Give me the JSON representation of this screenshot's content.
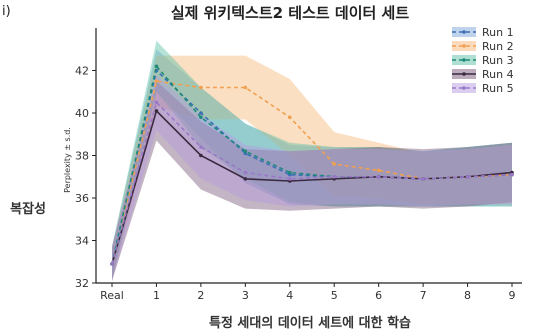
{
  "panel_label": "i)",
  "chart_data": {
    "type": "line",
    "title": "실제 위키텍스트2 테스트 데이터 세트",
    "xlabel": "특정 세대의 데이터 세트에 대한 학습",
    "ylabel": "복잡성",
    "ylabel_small": "Perplexity ± s.d.",
    "categories": [
      "Real",
      "1",
      "2",
      "3",
      "4",
      "5",
      "6",
      "7",
      "8",
      "9"
    ],
    "ylim": [
      32,
      44
    ],
    "yticks": [
      32,
      34,
      36,
      38,
      40,
      42
    ],
    "grid": false,
    "legend_position": "top-right",
    "series": [
      {
        "name": "Run 1",
        "color": "#3a6fb5",
        "band_color": "#7fa6d9",
        "linestyle": "dashed",
        "values": [
          32.9,
          42.0,
          40.0,
          38.1,
          37.1,
          37.0,
          37.0,
          36.9,
          37.0,
          37.1
        ],
        "sd": [
          0.8,
          1.0,
          1.2,
          1.4,
          1.4,
          1.4,
          1.4,
          1.3,
          1.4,
          1.5
        ]
      },
      {
        "name": "Run 2",
        "color": "#f0a050",
        "band_color": "#f7b87a",
        "linestyle": "dashed",
        "values": [
          32.9,
          41.5,
          41.2,
          41.2,
          39.8,
          37.6,
          37.3,
          36.9,
          37.0,
          37.1
        ],
        "sd": [
          0.8,
          1.2,
          1.5,
          1.5,
          1.8,
          1.5,
          1.3,
          1.2,
          1.3,
          1.4
        ]
      },
      {
        "name": "Run 3",
        "color": "#1f8a78",
        "band_color": "#5cc0a8",
        "linestyle": "dashed",
        "values": [
          32.9,
          42.2,
          39.8,
          38.2,
          37.2,
          37.0,
          37.0,
          36.9,
          37.0,
          37.1
        ],
        "sd": [
          0.8,
          1.2,
          1.4,
          1.3,
          1.4,
          1.4,
          1.4,
          1.3,
          1.4,
          1.5
        ]
      },
      {
        "name": "Run 4",
        "color": "#3a2a40",
        "band_color": "#7a5a7a",
        "linestyle": "solid",
        "values": [
          32.9,
          40.1,
          38.0,
          36.9,
          36.8,
          36.9,
          37.0,
          36.9,
          37.0,
          37.2
        ],
        "sd": [
          0.8,
          1.4,
          1.6,
          1.4,
          1.4,
          1.4,
          1.4,
          1.4,
          1.4,
          1.4
        ]
      },
      {
        "name": "Run 5",
        "color": "#9a78c8",
        "band_color": "#b59be0",
        "linestyle": "dashed",
        "values": [
          32.9,
          40.5,
          38.4,
          37.2,
          36.9,
          37.0,
          37.0,
          36.9,
          37.0,
          37.1
        ],
        "sd": [
          0.8,
          1.3,
          1.5,
          1.3,
          1.3,
          1.3,
          1.3,
          1.3,
          1.3,
          1.4
        ]
      }
    ]
  }
}
